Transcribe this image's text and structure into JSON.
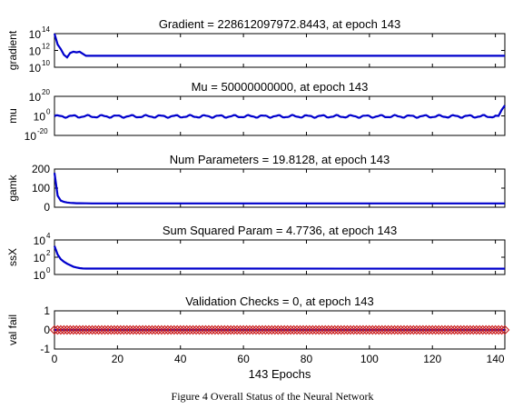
{
  "caption": "Figure 4 Overall Status of the Neural Network",
  "chart_data": [
    {
      "type": "line",
      "title": "Gradient = 228612097972.8443, at epoch 143",
      "ylabel": "gradient",
      "xlabel": "",
      "yscale": "log",
      "xlim": [
        0,
        143
      ],
      "ylim_exp": [
        10,
        14
      ],
      "ytick_exps": [
        10,
        12,
        14
      ],
      "color": "#0000cc",
      "x": [
        0,
        1,
        2,
        3,
        4,
        5,
        6,
        7,
        8,
        9,
        10,
        12,
        143
      ],
      "y": [
        100000000000000.0,
        5000000000000.0,
        1500000000000.0,
        300000000000.0,
        150000000000.0,
        500000000000.0,
        700000000000.0,
        600000000000.0,
        700000000000.0,
        400000000000.0,
        230000000000.0,
        230000000000.0,
        230000000000.0
      ]
    },
    {
      "type": "line",
      "title": "Mu = 50000000000, at epoch 143",
      "ylabel": "mu",
      "xlabel": "",
      "yscale": "log",
      "xlim": [
        0,
        143
      ],
      "ylim_exp": [
        -20,
        20
      ],
      "ytick_exps": [
        -20,
        0,
        20
      ],
      "color": "#0000cc",
      "x": [
        0,
        140,
        141,
        142,
        143
      ],
      "y": [
        0.001,
        0.03,
        1,
        1000000.0,
        50000000000
      ],
      "oscillation": {
        "low": 0.01,
        "high": 10
      }
    },
    {
      "type": "line",
      "title": "Num Parameters = 19.8128, at epoch 143",
      "ylabel": "gamk",
      "xlabel": "",
      "yscale": "linear",
      "xlim": [
        0,
        143
      ],
      "ylim": [
        0,
        200
      ],
      "yticks": [
        "0",
        "100",
        "200"
      ],
      "color": "#0000cc",
      "x": [
        0,
        1,
        2,
        3,
        4,
        5,
        6,
        7,
        8,
        10,
        12,
        15,
        143
      ],
      "y": [
        180,
        60,
        35,
        28,
        25,
        23,
        22,
        21,
        21,
        20.5,
        20,
        19.9,
        19.8128
      ]
    },
    {
      "type": "line",
      "title": "Sum Squared Param = 4.7736, at epoch 143",
      "ylabel": "ssX",
      "xlabel": "",
      "yscale": "log",
      "xlim": [
        0,
        143
      ],
      "ylim_exp": [
        0,
        4
      ],
      "ytick_exps": [
        0,
        2,
        4
      ],
      "color": "#0000cc",
      "x": [
        0,
        1,
        2,
        3,
        4,
        5,
        6,
        7,
        8,
        9,
        10,
        143
      ],
      "y": [
        2000,
        200,
        60,
        30,
        18,
        12,
        8,
        6.5,
        5.5,
        5,
        4.8,
        4.7736
      ]
    },
    {
      "type": "scatter",
      "title": "Validation Checks = 0, at epoch 143",
      "ylabel": "val fail",
      "xlabel": "143 Epochs",
      "yscale": "linear",
      "xlim": [
        0,
        143
      ],
      "ylim": [
        -1,
        1
      ],
      "yticks": [
        "-1",
        "0",
        "1"
      ],
      "xticks": [
        "0",
        "20",
        "40",
        "60",
        "80",
        "100",
        "120",
        "140"
      ],
      "color": "#cc2222",
      "line_color": "#0000cc",
      "value": 0,
      "count": 144
    }
  ]
}
